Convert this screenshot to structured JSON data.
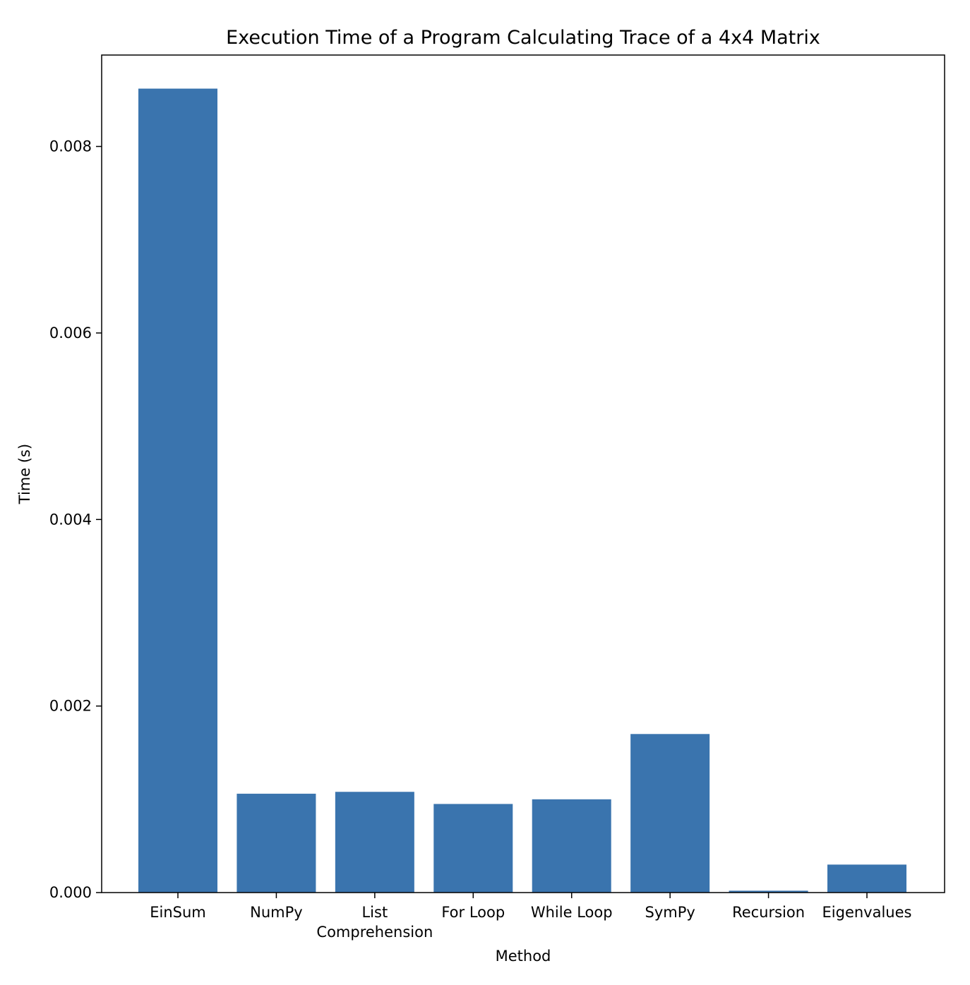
{
  "chart_data": {
    "type": "bar",
    "title": "Execution Time of a Program Calculating Trace of a 4x4 Matrix",
    "xlabel": "Method",
    "ylabel": "Time (s)",
    "categories": [
      [
        "EinSum"
      ],
      [
        "NumPy"
      ],
      [
        "List",
        "Comprehension"
      ],
      [
        "For Loop"
      ],
      [
        "While Loop"
      ],
      [
        "SymPy"
      ],
      [
        "Recursion"
      ],
      [
        "Eigenvalues"
      ]
    ],
    "values": [
      0.00862,
      0.00106,
      0.00108,
      0.00095,
      0.001,
      0.0017,
      2e-05,
      0.0003
    ],
    "ylim": [
      0,
      0.00898
    ],
    "yticks": [
      0.0,
      0.002,
      0.004,
      0.006,
      0.008
    ],
    "ytick_labels": [
      "0.000",
      "0.002",
      "0.004",
      "0.006",
      "0.008"
    ],
    "bar_color": "#3a74ae",
    "grid": false,
    "legend": "none"
  }
}
